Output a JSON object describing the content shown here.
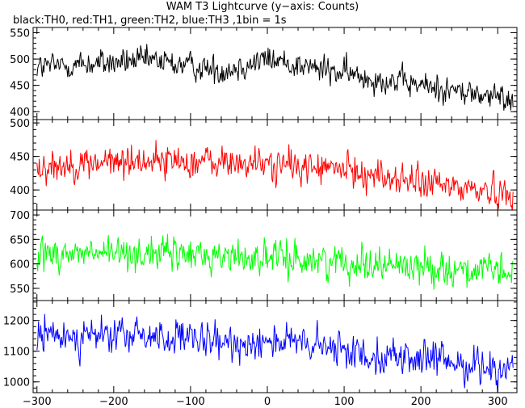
{
  "title": "WAM T3 Lightcurve (y−axis: Counts)",
  "subtitle": "black:TH0, red:TH1, green:TH2, blue:TH3 ,1bin = 1s",
  "chart_data": [
    {
      "type": "line",
      "series_name": "TH0",
      "color": "#000000",
      "x_range": [
        -305,
        325
      ],
      "ylim": [
        385,
        560
      ],
      "yticks": [
        400,
        450,
        500,
        550
      ],
      "xticks": [],
      "mean_profile": [
        [
          -300,
          485
        ],
        [
          -150,
          497
        ],
        [
          -60,
          478
        ],
        [
          0,
          500
        ],
        [
          100,
          472
        ],
        [
          200,
          450
        ],
        [
          320,
          422
        ]
      ],
      "noise_amplitude": 32
    },
    {
      "type": "line",
      "series_name": "TH1",
      "color": "#ff0000",
      "x_range": [
        -305,
        325
      ],
      "ylim": [
        370,
        505
      ],
      "yticks": [
        400,
        450,
        500
      ],
      "xticks": [],
      "mean_profile": [
        [
          -300,
          435
        ],
        [
          -150,
          445
        ],
        [
          0,
          438
        ],
        [
          100,
          430
        ],
        [
          200,
          410
        ],
        [
          320,
          395
        ]
      ],
      "noise_amplitude": 30
    },
    {
      "type": "line",
      "series_name": "TH2",
      "color": "#00ff00",
      "x_range": [
        -305,
        325
      ],
      "ylim": [
        525,
        710
      ],
      "yticks": [
        550,
        600,
        650,
        700
      ],
      "xticks": [],
      "mean_profile": [
        [
          -300,
          620
        ],
        [
          -150,
          622
        ],
        [
          0,
          612
        ],
        [
          100,
          605
        ],
        [
          200,
          595
        ],
        [
          320,
          580
        ]
      ],
      "noise_amplitude": 42
    },
    {
      "type": "line",
      "series_name": "TH3",
      "color": "#0000ff",
      "x_range": [
        -305,
        325
      ],
      "ylim": [
        965,
        1265
      ],
      "yticks": [
        1000,
        1100,
        1200
      ],
      "xticks": [
        -300,
        -200,
        -100,
        0,
        100,
        200,
        300
      ],
      "xtick_labels": [
        "−300",
        "−200",
        "−100",
        "0",
        "100",
        "200",
        "300"
      ],
      "mean_profile": [
        [
          -300,
          1150
        ],
        [
          -150,
          1150
        ],
        [
          -50,
          1120
        ],
        [
          0,
          1140
        ],
        [
          100,
          1100
        ],
        [
          200,
          1075
        ],
        [
          320,
          1040
        ]
      ],
      "noise_amplitude": 70
    }
  ]
}
